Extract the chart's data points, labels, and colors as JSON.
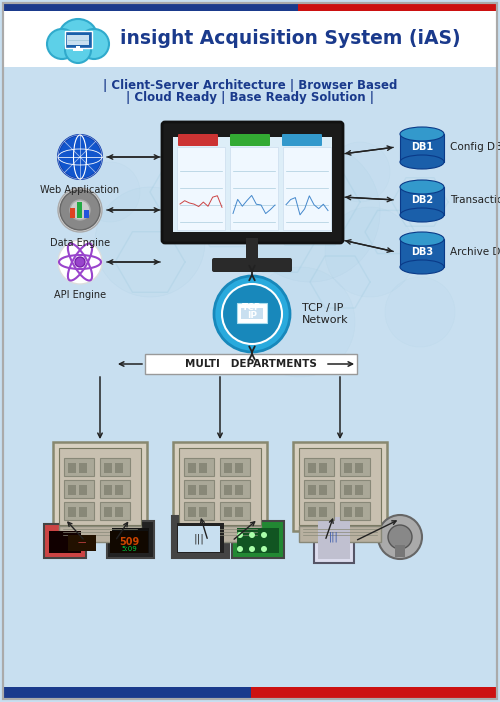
{
  "title": "insight Acquisition System (iAS)",
  "subtitle_line1": "| Client-Server Architecture | Browser Based",
  "subtitle_line2": "| Cloud Ready | Base Ready Solution |",
  "bg_color": "#c8dff0",
  "header_bg": "#ffffff",
  "header_bar_blue": "#1a3a8c",
  "header_bar_red": "#cc1111",
  "title_color": "#1a3a8c",
  "subtitle_color": "#1a3a8c",
  "left_labels": [
    "Web Application",
    "Data Engine",
    "API Engine"
  ],
  "right_labels": [
    "Config DB",
    "Transaction DB",
    "Archive DB"
  ],
  "right_db_labels": [
    "DB1",
    "DB2",
    "DB3"
  ],
  "network_label": "TCP / IP\nNetwork",
  "multi_dept_label": "MULTI   DEPARTMENTS",
  "footer_blue": "#1a3a8c",
  "footer_red": "#cc1111",
  "arrow_color": "#222222",
  "db_color": "#1a5faa",
  "tcp_circle_color": "#29aadd",
  "border_color": "#aaaaaa"
}
